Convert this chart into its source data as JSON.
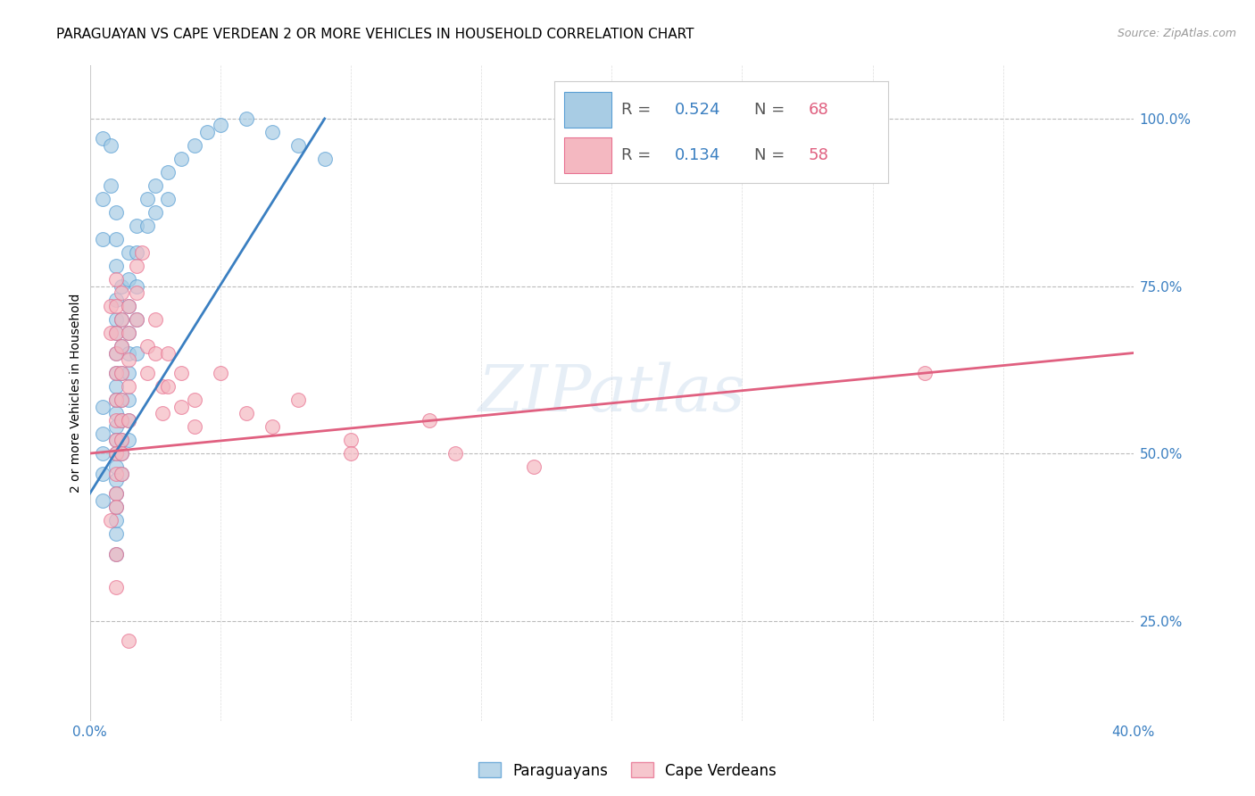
{
  "title": "PARAGUAYAN VS CAPE VERDEAN 2 OR MORE VEHICLES IN HOUSEHOLD CORRELATION CHART",
  "source": "Source: ZipAtlas.com",
  "ylabel": "2 or more Vehicles in Household",
  "ytick_labels": [
    "100.0%",
    "75.0%",
    "50.0%",
    "25.0%"
  ],
  "ytick_values": [
    1.0,
    0.75,
    0.5,
    0.25
  ],
  "xlim": [
    0.0,
    0.4
  ],
  "ylim": [
    0.1,
    1.08
  ],
  "legend_blue_r": "0.524",
  "legend_blue_n": "68",
  "legend_pink_r": "0.134",
  "legend_pink_n": "58",
  "blue_color": "#a8cce4",
  "pink_color": "#f4b8c1",
  "blue_edge_color": "#5a9fd4",
  "pink_edge_color": "#e87090",
  "blue_line_color": "#3a7fc1",
  "pink_line_color": "#e06080",
  "blue_line_x": [
    0.0,
    0.09
  ],
  "blue_line_y": [
    0.44,
    1.0
  ],
  "pink_line_x": [
    0.0,
    0.4
  ],
  "pink_line_y": [
    0.5,
    0.65
  ],
  "blue_scatter": [
    [
      0.005,
      0.97
    ],
    [
      0.005,
      0.88
    ],
    [
      0.005,
      0.82
    ],
    [
      0.008,
      0.96
    ],
    [
      0.008,
      0.9
    ],
    [
      0.01,
      0.86
    ],
    [
      0.01,
      0.82
    ],
    [
      0.01,
      0.78
    ],
    [
      0.01,
      0.73
    ],
    [
      0.01,
      0.7
    ],
    [
      0.01,
      0.68
    ],
    [
      0.01,
      0.65
    ],
    [
      0.01,
      0.62
    ],
    [
      0.01,
      0.6
    ],
    [
      0.01,
      0.58
    ],
    [
      0.01,
      0.56
    ],
    [
      0.01,
      0.54
    ],
    [
      0.01,
      0.52
    ],
    [
      0.01,
      0.5
    ],
    [
      0.01,
      0.48
    ],
    [
      0.01,
      0.46
    ],
    [
      0.01,
      0.44
    ],
    [
      0.01,
      0.42
    ],
    [
      0.012,
      0.75
    ],
    [
      0.012,
      0.7
    ],
    [
      0.012,
      0.66
    ],
    [
      0.012,
      0.62
    ],
    [
      0.012,
      0.58
    ],
    [
      0.012,
      0.55
    ],
    [
      0.012,
      0.52
    ],
    [
      0.012,
      0.5
    ],
    [
      0.012,
      0.47
    ],
    [
      0.015,
      0.8
    ],
    [
      0.015,
      0.76
    ],
    [
      0.015,
      0.72
    ],
    [
      0.015,
      0.68
    ],
    [
      0.015,
      0.65
    ],
    [
      0.015,
      0.62
    ],
    [
      0.015,
      0.58
    ],
    [
      0.015,
      0.55
    ],
    [
      0.015,
      0.52
    ],
    [
      0.018,
      0.84
    ],
    [
      0.018,
      0.8
    ],
    [
      0.018,
      0.75
    ],
    [
      0.018,
      0.7
    ],
    [
      0.018,
      0.65
    ],
    [
      0.022,
      0.88
    ],
    [
      0.022,
      0.84
    ],
    [
      0.025,
      0.9
    ],
    [
      0.025,
      0.86
    ],
    [
      0.03,
      0.92
    ],
    [
      0.03,
      0.88
    ],
    [
      0.035,
      0.94
    ],
    [
      0.04,
      0.96
    ],
    [
      0.045,
      0.98
    ],
    [
      0.05,
      0.99
    ],
    [
      0.06,
      1.0
    ],
    [
      0.07,
      0.98
    ],
    [
      0.08,
      0.96
    ],
    [
      0.09,
      0.94
    ],
    [
      0.01,
      0.38
    ],
    [
      0.01,
      0.35
    ],
    [
      0.01,
      0.4
    ],
    [
      0.005,
      0.43
    ],
    [
      0.005,
      0.47
    ],
    [
      0.005,
      0.5
    ],
    [
      0.005,
      0.53
    ],
    [
      0.005,
      0.57
    ]
  ],
  "pink_scatter": [
    [
      0.008,
      0.68
    ],
    [
      0.008,
      0.72
    ],
    [
      0.01,
      0.76
    ],
    [
      0.01,
      0.72
    ],
    [
      0.01,
      0.68
    ],
    [
      0.01,
      0.65
    ],
    [
      0.01,
      0.62
    ],
    [
      0.01,
      0.58
    ],
    [
      0.01,
      0.55
    ],
    [
      0.01,
      0.52
    ],
    [
      0.01,
      0.5
    ],
    [
      0.01,
      0.47
    ],
    [
      0.01,
      0.44
    ],
    [
      0.01,
      0.42
    ],
    [
      0.012,
      0.74
    ],
    [
      0.012,
      0.7
    ],
    [
      0.012,
      0.66
    ],
    [
      0.012,
      0.62
    ],
    [
      0.012,
      0.58
    ],
    [
      0.012,
      0.55
    ],
    [
      0.012,
      0.52
    ],
    [
      0.012,
      0.5
    ],
    [
      0.012,
      0.47
    ],
    [
      0.015,
      0.72
    ],
    [
      0.015,
      0.68
    ],
    [
      0.015,
      0.64
    ],
    [
      0.015,
      0.6
    ],
    [
      0.015,
      0.55
    ],
    [
      0.018,
      0.78
    ],
    [
      0.018,
      0.74
    ],
    [
      0.018,
      0.7
    ],
    [
      0.02,
      0.8
    ],
    [
      0.022,
      0.66
    ],
    [
      0.022,
      0.62
    ],
    [
      0.025,
      0.7
    ],
    [
      0.025,
      0.65
    ],
    [
      0.028,
      0.6
    ],
    [
      0.028,
      0.56
    ],
    [
      0.03,
      0.65
    ],
    [
      0.03,
      0.6
    ],
    [
      0.035,
      0.62
    ],
    [
      0.035,
      0.57
    ],
    [
      0.04,
      0.58
    ],
    [
      0.04,
      0.54
    ],
    [
      0.05,
      0.62
    ],
    [
      0.06,
      0.56
    ],
    [
      0.07,
      0.54
    ],
    [
      0.08,
      0.58
    ],
    [
      0.1,
      0.52
    ],
    [
      0.1,
      0.5
    ],
    [
      0.13,
      0.55
    ],
    [
      0.14,
      0.5
    ],
    [
      0.17,
      0.48
    ],
    [
      0.32,
      0.62
    ],
    [
      0.01,
      0.35
    ],
    [
      0.01,
      0.3
    ],
    [
      0.015,
      0.22
    ],
    [
      0.008,
      0.4
    ]
  ],
  "watermark_text": "ZIPatlas",
  "title_fontsize": 11,
  "axis_label_fontsize": 10,
  "tick_fontsize": 11,
  "legend_fontsize": 13,
  "source_fontsize": 9
}
